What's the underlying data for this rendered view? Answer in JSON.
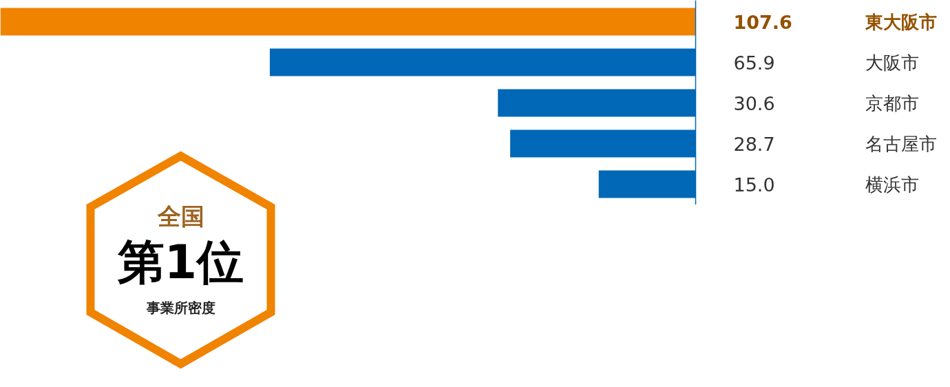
{
  "chart_data": {
    "type": "bar",
    "orientation": "horizontal",
    "categories": [
      "東大阪市",
      "大阪市",
      "京都市",
      "名古屋市",
      "横浜市"
    ],
    "values": [
      107.6,
      65.9,
      30.6,
      28.7,
      15.0
    ],
    "colors": [
      "#f08300",
      "#0068b7",
      "#0068b7",
      "#0068b7",
      "#0068b7"
    ],
    "value_labels": [
      "107.6",
      "65.9",
      "30.6",
      "28.7",
      "15.0"
    ],
    "grid": false,
    "annotations": [
      "全国",
      "第1位",
      "事業所密度"
    ]
  }
}
